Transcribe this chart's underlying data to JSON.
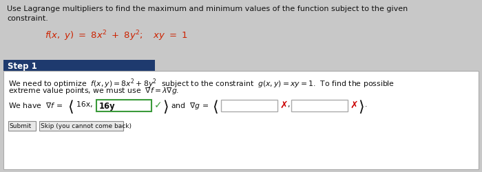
{
  "bg_color": "#c8c8c8",
  "white_bg": "#ffffff",
  "step_bar_color": "#1e3a6e",
  "step_bar_text": "Step 1",
  "step_bar_text_color": "#ffffff",
  "title_line1": "Use Lagrange multipliers to find the maximum and minimum values of the function subject to the given",
  "title_line2": "constraint.",
  "formula_text": "$f(x,\\ y) = 8x^2 + 8y^2;\\quad xy = 1$",
  "body_line1a": "We need to optimize  ",
  "body_line1b": "$f(x,y) = 8x^2 + 8y^2$",
  "body_line1c": "  subject to the constraint  ",
  "body_line1d": "$g(x, y) = xy = 1$",
  "body_line1e": ".  To find the possible",
  "body_line2": "extreme value points, we must use  $\\nabla f = \\lambda \\nabla g$.",
  "gradient_prefix": "We have  $\\nabla f$ = ",
  "filled_prefix": "16x,",
  "filled_value": "16y",
  "and_vg": "  and  $\\nabla g$ = ",
  "checkmark_color": "#3a9a3a",
  "x_color": "#cc0000",
  "input_box_border": "#aaaaaa",
  "green_border": "#3a9a3a",
  "input_box_bg": "#ffffff",
  "submit_btn_text": "Submit",
  "skip_btn_text": "Skip (you cannot come back)",
  "btn_border": "#888888",
  "btn_bg": "#e8e8e8",
  "font_color": "#111111",
  "red_text_color": "#cc2200",
  "outer_border_color": "#aaaaaa",
  "inner_box_border": "#aaaaaa",
  "separator_color": "#999999",
  "font_size_body": 7.8,
  "font_size_formula": 9.0,
  "font_size_title": 8.0
}
